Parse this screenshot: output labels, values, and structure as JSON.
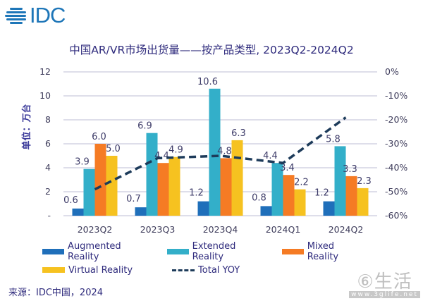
{
  "logo": {
    "text": "IDC",
    "icon": "idc-globe-stripes-icon"
  },
  "colors": {
    "augmented": "#1f6fba",
    "extended": "#33afc9",
    "mixed": "#f57b24",
    "virtual": "#f6c220",
    "yoy": "#1d3b5a",
    "text": "#2e2a7c",
    "grid": "#d4d4e4"
  },
  "legend_labels": {
    "augmented": "Augmented Reality",
    "extended": "Extended Reality",
    "mixed": "Mixed Reality",
    "virtual": "Virtual Reality",
    "yoy": "Total YOY"
  },
  "footer": {
    "source": "来源：IDC中国，2024"
  },
  "watermark": {
    "main": "⑥生活",
    "sub": "www.3glife.net"
  },
  "chart_data": {
    "type": "bar",
    "title": "中国AR/VR市场出货量——按产品类型, 2023Q2-2024Q2",
    "ylabel": "单位：万台",
    "y2label": "",
    "xlabel": "",
    "categories": [
      "2023Q2",
      "2023Q3",
      "2023Q4",
      "2024Q1",
      "2024Q2"
    ],
    "ylim": [
      0,
      12
    ],
    "yticks": [
      0,
      2,
      4,
      6,
      8,
      10,
      12
    ],
    "ytick_labels": [
      "-",
      "2",
      "4",
      "6",
      "8",
      "10",
      "12"
    ],
    "y2lim": [
      -60,
      0
    ],
    "y2ticks": [
      0,
      -10,
      -20,
      -30,
      -40,
      -50,
      -60
    ],
    "y2tick_labels": [
      "0%",
      "-10%",
      "-20%",
      "-30%",
      "-40%",
      "-50%",
      "-60%"
    ],
    "grid": true,
    "legend_position": "bottom",
    "series": [
      {
        "key": "augmented",
        "name": "Augmented Reality",
        "type": "bar",
        "axis": "left",
        "values": [
          0.6,
          0.7,
          1.2,
          0.8,
          1.2
        ]
      },
      {
        "key": "extended",
        "name": "Extended Reality",
        "type": "bar",
        "axis": "left",
        "values": [
          3.9,
          6.9,
          10.6,
          4.4,
          5.8
        ]
      },
      {
        "key": "mixed",
        "name": "Mixed Reality",
        "type": "bar",
        "axis": "left",
        "values": [
          6.0,
          4.4,
          4.8,
          3.4,
          3.3
        ]
      },
      {
        "key": "virtual",
        "name": "Virtual Reality",
        "type": "bar",
        "axis": "left",
        "values": [
          5.0,
          4.9,
          6.3,
          2.2,
          2.3
        ]
      },
      {
        "key": "yoy",
        "name": "Total YOY",
        "type": "line",
        "style": "dashed",
        "axis": "right",
        "values": [
          -49,
          -36,
          -35,
          -38,
          -19
        ]
      }
    ]
  }
}
